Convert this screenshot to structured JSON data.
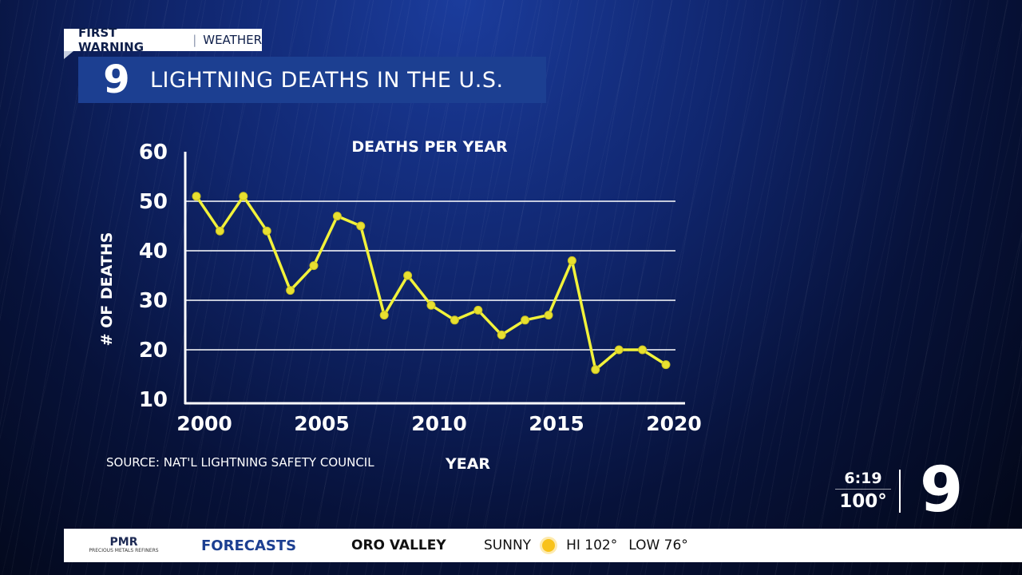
{
  "header": {
    "tag_bold": "FIRST WARNING",
    "tag_light": "WEATHER",
    "logo": "9",
    "title": "LIGHTNING DEATHS IN THE U.S."
  },
  "source": "SOURCE: NAT'L LIGHTNING SAFETY COUNCIL",
  "corner": {
    "time": "6:19",
    "temperature": "100°",
    "logo": "9"
  },
  "ticker": {
    "sponsor_name": "PMR",
    "sponsor_sub": "PRECIOUS METALS REFINERS",
    "section": "FORECASTS",
    "location": "ORO VALLEY",
    "condition": "SUNNY",
    "condition_icon": "sun-icon",
    "hi": "HI 102°",
    "low": "LOW 76°"
  },
  "colors": {
    "line": "#f2f23a",
    "marker": "#e8e030",
    "title_bar": "#1c3f91"
  },
  "chart_data": {
    "type": "line",
    "title": "DEATHS PER YEAR",
    "xlabel": "YEAR",
    "ylabel": "# OF DEATHS",
    "xlim": [
      2000,
      2020
    ],
    "ylim": [
      10,
      60
    ],
    "xticks": [
      2000,
      2005,
      2010,
      2015,
      2020
    ],
    "yticks": [
      10,
      20,
      30,
      40,
      50,
      60
    ],
    "gridlines": [
      20,
      30,
      40,
      50
    ],
    "legend": "none",
    "series": [
      {
        "x": [
          2000,
          2001,
          2002,
          2003,
          2004,
          2005,
          2006,
          2007,
          2008,
          2009,
          2010,
          2011,
          2012,
          2013,
          2014,
          2015,
          2016,
          2017,
          2018,
          2019,
          2020
        ],
        "values": [
          51,
          44,
          51,
          44,
          32,
          37,
          47,
          45,
          27,
          35,
          29,
          26,
          28,
          23,
          26,
          27,
          38,
          16,
          20,
          20,
          17
        ]
      }
    ]
  }
}
